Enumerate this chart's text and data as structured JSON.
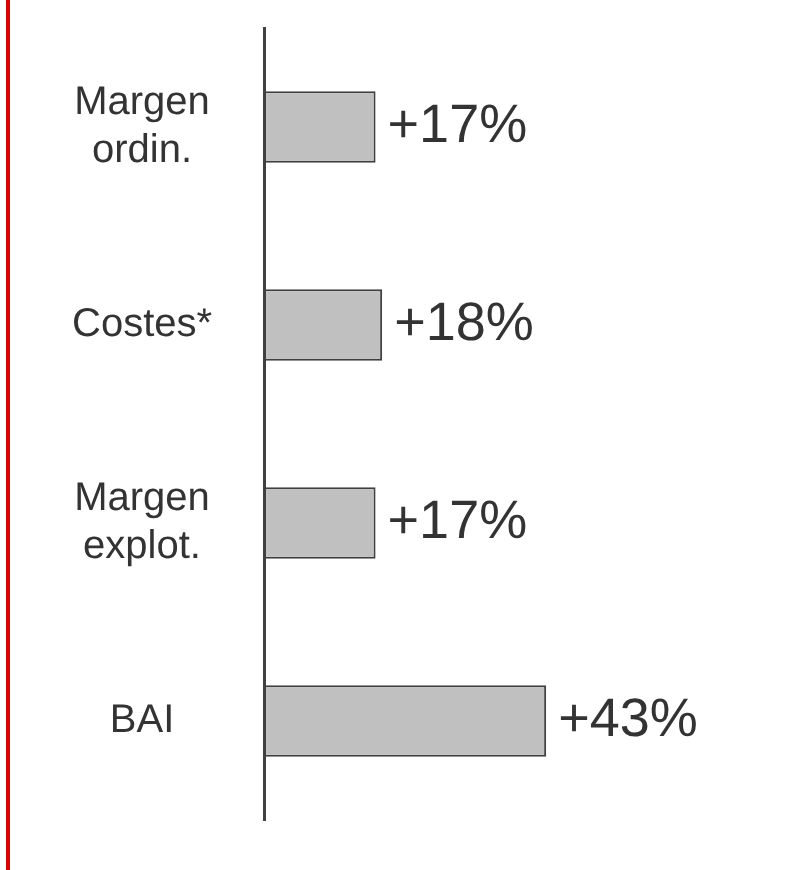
{
  "chart_data": {
    "type": "bar",
    "orientation": "horizontal",
    "categories": [
      "Margen ordin.",
      "Costes*",
      "Margen explot.",
      "BAI"
    ],
    "values": [
      17,
      18,
      17,
      43
    ],
    "color": "#c0c0c0",
    "value_labels": [
      "+17%",
      "+18%",
      "+17%",
      "+43%"
    ],
    "legend": false
  }
}
